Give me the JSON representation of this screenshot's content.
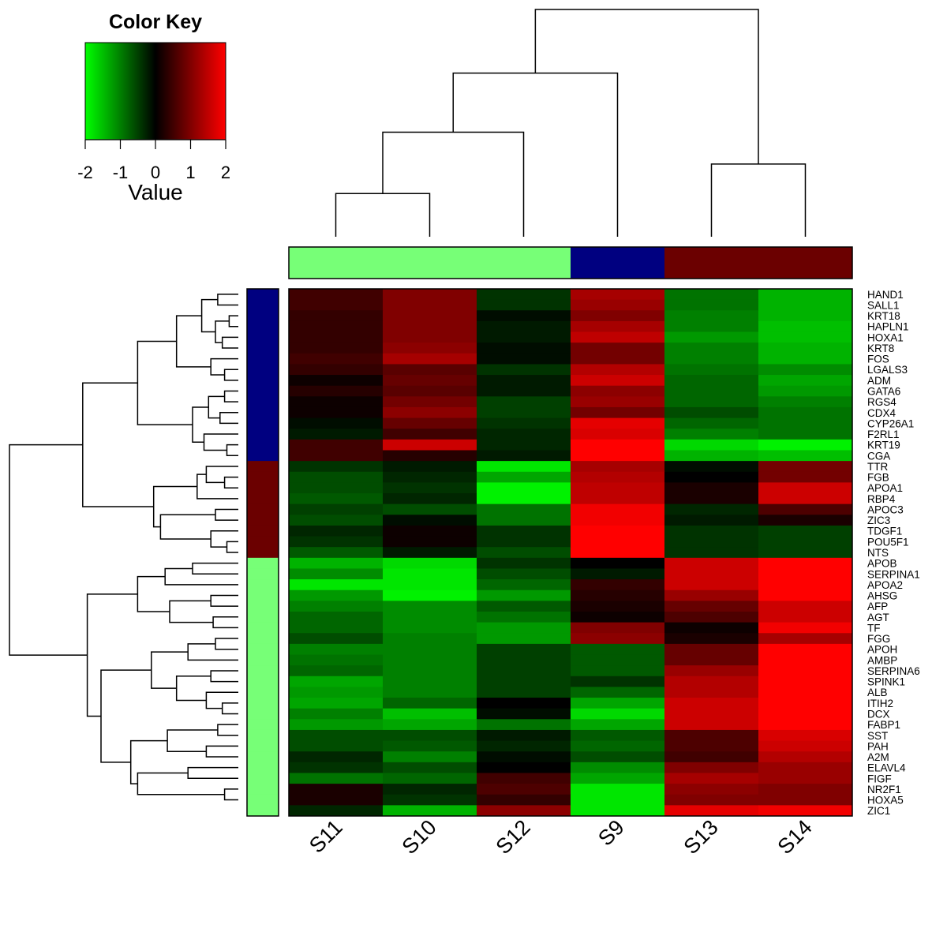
{
  "chart_data": {
    "type": "heatmap",
    "title": "",
    "color_key": {
      "title": "Color Key",
      "label": "Value",
      "ticks": [
        "-2",
        "-1",
        "0",
        "1",
        "2"
      ],
      "range": [
        -2,
        2
      ],
      "low_color": "#00ff00",
      "mid_color": "#000000",
      "high_color": "#ff0000"
    },
    "columns": [
      "S11",
      "S10",
      "S12",
      "S9",
      "S13",
      "S14"
    ],
    "column_groups": [
      "#77ff77",
      "#77ff77",
      "#77ff77",
      "#000080",
      "#6b0000",
      "#6b0000"
    ],
    "rows": [
      "HAND1",
      "SALL1",
      "KRT18",
      "HAPLN1",
      "HOXA1",
      "KRT8",
      "FOS",
      "LGALS3",
      "ADM",
      "GATA6",
      "RGS4",
      "CDX4",
      "CYP26A1",
      "F2RL1",
      "KRT19",
      "CGA",
      "TTR",
      "FGB",
      "APOA1",
      "RBP4",
      "APOC3",
      "ZIC3",
      "TDGF1",
      "POU5F1",
      "NTS",
      "APOB",
      "SERPINA1",
      "APOA2",
      "AHSG",
      "AFP",
      "AGT",
      "TF",
      "FGG",
      "APOH",
      "AMBP",
      "SERPINA6",
      "SPINK1",
      "ALB",
      "ITIH2",
      "DCX",
      "FABP1",
      "SST",
      "PAH",
      "A2M",
      "ELAVL4",
      "FIGF",
      "NR2F1",
      "HOXA5",
      "ZIC1"
    ],
    "row_groups": [
      "#000080",
      "#000080",
      "#000080",
      "#000080",
      "#000080",
      "#000080",
      "#000080",
      "#000080",
      "#000080",
      "#000080",
      "#000080",
      "#000080",
      "#000080",
      "#000080",
      "#000080",
      "#000080",
      "#6b0000",
      "#6b0000",
      "#6b0000",
      "#6b0000",
      "#6b0000",
      "#6b0000",
      "#6b0000",
      "#6b0000",
      "#6b0000",
      "#77ff77",
      "#77ff77",
      "#77ff77",
      "#77ff77",
      "#77ff77",
      "#77ff77",
      "#77ff77",
      "#77ff77",
      "#77ff77",
      "#77ff77",
      "#77ff77",
      "#77ff77",
      "#77ff77",
      "#77ff77",
      "#77ff77",
      "#77ff77",
      "#77ff77",
      "#77ff77",
      "#77ff77",
      "#77ff77",
      "#77ff77",
      "#77ff77",
      "#77ff77",
      "#77ff77"
    ],
    "values": [
      [
        0.5,
        1.0,
        -0.4,
        1.3,
        -0.9,
        -1.4
      ],
      [
        0.5,
        1.0,
        -0.4,
        1.2,
        -0.9,
        -1.4
      ],
      [
        0.4,
        1.0,
        -0.1,
        1.0,
        -1.0,
        -1.4
      ],
      [
        0.4,
        1.0,
        -0.2,
        1.3,
        -1.0,
        -1.5
      ],
      [
        0.4,
        1.0,
        -0.2,
        1.5,
        -1.2,
        -1.5
      ],
      [
        0.4,
        1.1,
        -0.1,
        0.9,
        -1.0,
        -1.4
      ],
      [
        0.5,
        1.3,
        -0.1,
        0.9,
        -1.0,
        -1.4
      ],
      [
        0.4,
        0.7,
        -0.4,
        1.4,
        -0.9,
        -1.1
      ],
      [
        0.1,
        0.8,
        -0.2,
        1.6,
        -0.8,
        -1.3
      ],
      [
        0.3,
        0.7,
        -0.2,
        1.1,
        -0.8,
        -1.2
      ],
      [
        0.1,
        0.9,
        -0.5,
        1.2,
        -0.8,
        -1.0
      ],
      [
        0.1,
        1.1,
        -0.5,
        0.9,
        -0.6,
        -0.9
      ],
      [
        -0.1,
        0.8,
        -0.4,
        1.8,
        -0.8,
        -0.9
      ],
      [
        -0.2,
        0.5,
        -0.3,
        1.7,
        -1.0,
        -0.9
      ],
      [
        0.5,
        1.6,
        -0.3,
        2.0,
        -1.7,
        -1.9
      ],
      [
        0.5,
        0.3,
        -0.2,
        2.0,
        -1.4,
        -1.5
      ],
      [
        -0.4,
        -0.2,
        -1.8,
        1.3,
        -0.1,
        0.9
      ],
      [
        -0.6,
        -0.3,
        -1.3,
        1.4,
        0.0,
        0.9
      ],
      [
        -0.6,
        -0.4,
        -1.9,
        1.5,
        0.2,
        1.6
      ],
      [
        -0.7,
        -0.3,
        -1.9,
        1.5,
        0.2,
        1.6
      ],
      [
        -0.5,
        -0.6,
        -0.9,
        1.9,
        -0.3,
        0.6
      ],
      [
        -0.6,
        -0.1,
        -0.9,
        1.9,
        -0.2,
        0.2
      ],
      [
        -0.3,
        0.1,
        -0.4,
        2.0,
        -0.4,
        -0.5
      ],
      [
        -0.4,
        0.1,
        -0.4,
        2.0,
        -0.4,
        -0.5
      ],
      [
        -0.7,
        -0.2,
        -0.6,
        2.0,
        -0.4,
        -0.5
      ],
      [
        -1.4,
        -1.7,
        -0.4,
        0.0,
        1.6,
        2.0
      ],
      [
        -1.1,
        -1.8,
        -0.6,
        -0.2,
        1.6,
        2.0
      ],
      [
        -1.8,
        -1.8,
        -0.8,
        0.4,
        1.6,
        2.0
      ],
      [
        -1.2,
        -1.9,
        -1.2,
        0.3,
        1.2,
        2.0
      ],
      [
        -1.0,
        -1.1,
        -0.7,
        0.2,
        0.8,
        1.6
      ],
      [
        -0.8,
        -1.1,
        -0.9,
        0.1,
        0.6,
        1.6
      ],
      [
        -0.8,
        -1.1,
        -1.2,
        1.0,
        0.1,
        1.9
      ],
      [
        -0.6,
        -1.0,
        -1.2,
        1.1,
        0.2,
        1.3
      ],
      [
        -1.0,
        -1.0,
        -0.5,
        -0.7,
        0.8,
        2.0
      ],
      [
        -0.9,
        -1.0,
        -0.5,
        -0.7,
        0.8,
        2.0
      ],
      [
        -0.8,
        -1.0,
        -0.5,
        -0.7,
        1.2,
        2.0
      ],
      [
        -1.3,
        -1.0,
        -0.5,
        -0.4,
        1.4,
        2.0
      ],
      [
        -1.2,
        -1.0,
        -0.5,
        -0.8,
        1.4,
        2.0
      ],
      [
        -1.3,
        -0.8,
        0.0,
        -1.3,
        1.6,
        2.0
      ],
      [
        -1.0,
        -1.5,
        -0.1,
        -1.7,
        1.6,
        2.0
      ],
      [
        -1.2,
        -1.3,
        -0.9,
        -1.3,
        1.6,
        2.0
      ],
      [
        -0.6,
        -0.6,
        -0.2,
        -0.7,
        0.6,
        1.7
      ],
      [
        -0.6,
        -0.7,
        -0.3,
        -0.8,
        0.6,
        1.6
      ],
      [
        -0.3,
        -1.0,
        -0.1,
        -0.6,
        0.5,
        1.4
      ],
      [
        -0.4,
        -0.6,
        0.0,
        -1.1,
        1.0,
        1.2
      ],
      [
        -0.9,
        -0.8,
        0.5,
        -1.3,
        1.3,
        1.2
      ],
      [
        0.2,
        -0.3,
        0.6,
        -1.8,
        1.1,
        1.0
      ],
      [
        0.2,
        -0.4,
        0.4,
        -1.8,
        1.0,
        1.0
      ],
      [
        -0.3,
        -1.4,
        1.1,
        -1.8,
        1.8,
        1.9
      ]
    ]
  }
}
